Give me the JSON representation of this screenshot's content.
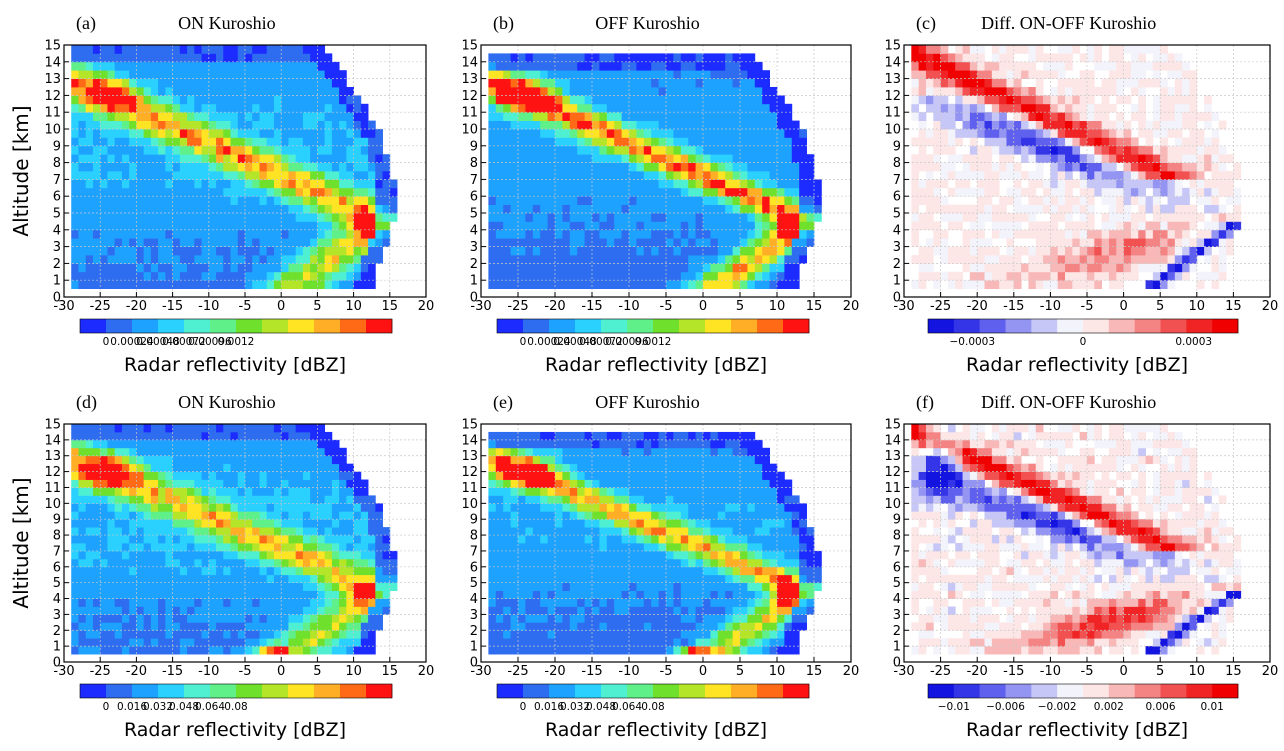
{
  "figure": {
    "ylabel": "Altitude [km]",
    "panels": [
      {
        "letter": "(a)",
        "title": "ON Kuroshio",
        "xlabel": "Radar reflectivity [dBZ]",
        "colorbar_ticks": [
          "0",
          "0.00024",
          "0.00048",
          "0.00072",
          "0.00096",
          "0.0012"
        ]
      },
      {
        "letter": "(b)",
        "title": "OFF Kuroshio",
        "xlabel": "Radar reflectivity [dBZ]",
        "colorbar_ticks": [
          "0",
          "0.00024",
          "0.00048",
          "0.00072",
          "0.00096",
          "0.0012"
        ]
      },
      {
        "letter": "(c)",
        "title": "Diff. ON-OFF Kuroshio",
        "xlabel": "Radar reflectivity [dBZ]",
        "colorbar_ticks": [
          "−0.0003",
          "0",
          "0.0003"
        ]
      },
      {
        "letter": "(d)",
        "title": "ON Kuroshio",
        "xlabel": "Radar reflectivity [dBZ]",
        "colorbar_ticks": [
          "0",
          "0.016",
          "0.032",
          "0.048",
          "0.064",
          "0.08"
        ]
      },
      {
        "letter": "(e)",
        "title": "OFF Kuroshio",
        "xlabel": "Radar reflectivity [dBZ]",
        "colorbar_ticks": [
          "0",
          "0.016",
          "0.032",
          "0.048",
          "0.064",
          "0.08"
        ]
      },
      {
        "letter": "(f)",
        "title": "Diff. ON-OFF Kuroshio",
        "xlabel": "Radar reflectivity [dBZ]",
        "colorbar_ticks": [
          "−0.01",
          "−0.006",
          "−0.002",
          "0.002",
          "0.006",
          "0.01"
        ]
      }
    ]
  },
  "chart_data": [
    {
      "id": "a",
      "type": "heatmap",
      "title": "ON Kuroshio",
      "xlabel": "Radar reflectivity [dBZ]",
      "ylabel": "Altitude [km]",
      "xlim": [
        -30,
        20
      ],
      "ylim": [
        0,
        15
      ],
      "xticks": [
        -30,
        -25,
        -20,
        -15,
        -10,
        -5,
        0,
        5,
        10,
        15,
        20
      ],
      "yticks": [
        0,
        1,
        2,
        3,
        4,
        5,
        6,
        7,
        8,
        9,
        10,
        11,
        12,
        13,
        14,
        15
      ],
      "grid": true,
      "colorscale": "rainbow",
      "value_range": [
        0,
        0.0013
      ],
      "colorbar_ticks": [
        0,
        0.00024,
        0.00048,
        0.00072,
        0.00096,
        0.0012
      ],
      "bins_x": 50,
      "bins_y": 30,
      "zmax": 15,
      "features": {
        "ridge_value": 0.00075,
        "ridge_width_dbz": 2.6,
        "melting_max": 0.0012,
        "anvil_max": 0.001,
        "near_max": 0.0005,
        "base": 0.00032
      }
    },
    {
      "id": "b",
      "type": "heatmap",
      "title": "OFF Kuroshio",
      "xlabel": "Radar reflectivity [dBZ]",
      "ylabel": "Altitude [km]",
      "xlim": [
        -30,
        20
      ],
      "ylim": [
        0,
        15
      ],
      "xticks": [
        -30,
        -25,
        -20,
        -15,
        -10,
        -5,
        0,
        5,
        10,
        15,
        20
      ],
      "yticks": [
        0,
        1,
        2,
        3,
        4,
        5,
        6,
        7,
        8,
        9,
        10,
        11,
        12,
        13,
        14,
        15
      ],
      "grid": true,
      "colorscale": "rainbow",
      "value_range": [
        0,
        0.0013
      ],
      "colorbar_ticks": [
        0,
        0.00024,
        0.00048,
        0.00072,
        0.00096,
        0.0012
      ],
      "bins_x": 50,
      "bins_y": 30,
      "zmax": 14.5,
      "features": {
        "ridge_value": 0.0009,
        "ridge_width_dbz": 2.2,
        "melting_max": 0.0013,
        "anvil_max": 0.0013,
        "near_max": 0.0013,
        "base": 0.00028
      }
    },
    {
      "id": "c",
      "type": "heatmap",
      "title": "Diff. ON-OFF Kuroshio",
      "xlabel": "Radar reflectivity [dBZ]",
      "ylabel": "Altitude [km]",
      "xlim": [
        -30,
        20
      ],
      "ylim": [
        0,
        15
      ],
      "xticks": [
        -30,
        -25,
        -20,
        -15,
        -10,
        -5,
        0,
        5,
        10,
        15,
        20
      ],
      "yticks": [
        0,
        1,
        2,
        3,
        4,
        5,
        6,
        7,
        8,
        9,
        10,
        11,
        12,
        13,
        14,
        15
      ],
      "grid": true,
      "colorscale": "blue-white-red",
      "value_range": [
        -0.00042,
        0.00042
      ],
      "colorbar_ticks": [
        -0.0003,
        0,
        0.0003
      ],
      "bins_x": 50,
      "bins_y": 30,
      "zmax": 15,
      "features": {
        "upper_positive": 0.0004,
        "mid_negative": -0.0004,
        "low_positive": 0.00025,
        "bright_band_negative": -0.0004
      }
    },
    {
      "id": "d",
      "type": "heatmap",
      "title": "ON Kuroshio",
      "xlabel": "Radar reflectivity [dBZ]",
      "ylabel": "Altitude [km]",
      "xlim": [
        -30,
        20
      ],
      "ylim": [
        0,
        15
      ],
      "xticks": [
        -30,
        -25,
        -20,
        -15,
        -10,
        -5,
        0,
        5,
        10,
        15,
        20
      ],
      "yticks": [
        0,
        1,
        2,
        3,
        4,
        5,
        6,
        7,
        8,
        9,
        10,
        11,
        12,
        13,
        14,
        15
      ],
      "grid": true,
      "colorscale": "rainbow",
      "value_range": [
        0,
        0.088
      ],
      "colorbar_ticks": [
        0,
        0.016,
        0.032,
        0.048,
        0.064,
        0.08
      ],
      "bins_x": 50,
      "bins_y": 30,
      "zmax": 15,
      "features": {
        "ridge_value": 0.045,
        "ridge_width_dbz": 2.8,
        "melting_max": 0.075,
        "anvil_max": 0.085,
        "near_max": 0.03,
        "base": 0.022,
        "surface_hotspot": 0.085
      }
    },
    {
      "id": "e",
      "type": "heatmap",
      "title": "OFF Kuroshio",
      "xlabel": "Radar reflectivity [dBZ]",
      "ylabel": "Altitude [km]",
      "xlim": [
        -30,
        20
      ],
      "ylim": [
        0,
        15
      ],
      "xticks": [
        -30,
        -25,
        -20,
        -15,
        -10,
        -5,
        0,
        5,
        10,
        15,
        20
      ],
      "yticks": [
        0,
        1,
        2,
        3,
        4,
        5,
        6,
        7,
        8,
        9,
        10,
        11,
        12,
        13,
        14,
        15
      ],
      "grid": true,
      "colorscale": "rainbow",
      "value_range": [
        0,
        0.088
      ],
      "colorbar_ticks": [
        0,
        0.016,
        0.032,
        0.048,
        0.064,
        0.08
      ],
      "bins_x": 50,
      "bins_y": 30,
      "zmax": 14.5,
      "features": {
        "ridge_value": 0.05,
        "ridge_width_dbz": 2.2,
        "melting_max": 0.088,
        "anvil_max": 0.088,
        "near_max": 0.035,
        "base": 0.02,
        "surface_hotspot": 0.08
      }
    },
    {
      "id": "f",
      "type": "heatmap",
      "title": "Diff. ON-OFF Kuroshio",
      "xlabel": "Radar reflectivity [dBZ]",
      "ylabel": "Altitude [km]",
      "xlim": [
        -30,
        20
      ],
      "ylim": [
        0,
        15
      ],
      "xticks": [
        -30,
        -25,
        -20,
        -15,
        -10,
        -5,
        0,
        5,
        10,
        15,
        20
      ],
      "yticks": [
        0,
        1,
        2,
        3,
        4,
        5,
        6,
        7,
        8,
        9,
        10,
        11,
        12,
        13,
        14,
        15
      ],
      "grid": true,
      "colorscale": "blue-white-red",
      "value_range": [
        -0.012,
        0.012
      ],
      "colorbar_ticks": [
        -0.01,
        -0.006,
        -0.002,
        0.002,
        0.006,
        0.01
      ],
      "bins_x": 50,
      "bins_y": 30,
      "zmax": 15,
      "features": {
        "upper_positive": 0.012,
        "mid_negative": -0.012,
        "low_positive": 0.012,
        "bright_band_negative": -0.012,
        "top_left_negative": -0.012
      }
    }
  ]
}
